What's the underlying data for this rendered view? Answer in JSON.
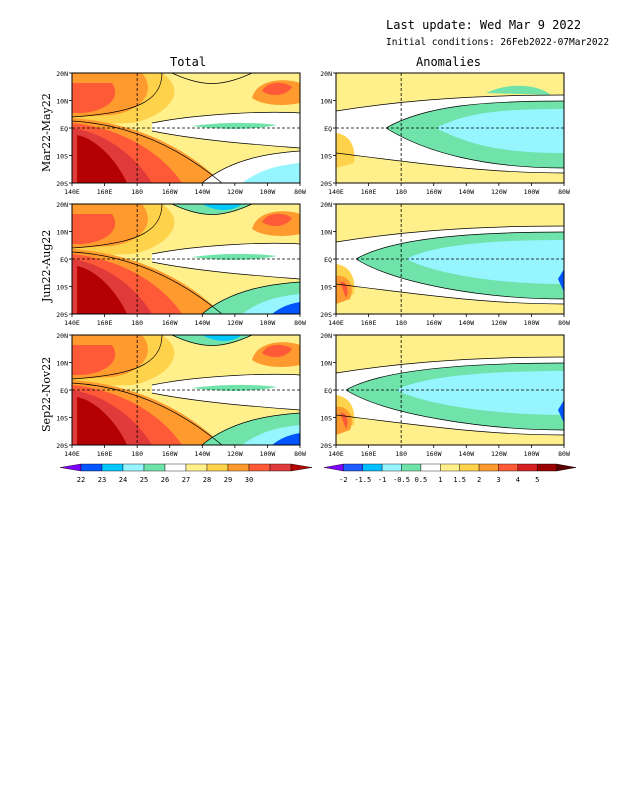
{
  "header": {
    "last_update": "Last update: Wed Mar 9 2022",
    "initial_conditions": "Initial conditions: 26Feb2022-07Mar2022"
  },
  "columns": {
    "total": "Total",
    "anomalies": "Anomalies"
  },
  "rows": [
    "Mar22-May22",
    "Jun22-Aug22",
    "Sep22-Nov22"
  ],
  "map": {
    "lat_labels": [
      "20N",
      "10N",
      "EQ",
      "10S",
      "20S"
    ],
    "lon_labels": [
      "140E",
      "160E",
      "180",
      "160W",
      "140W",
      "120W",
      "100W",
      "80W"
    ]
  },
  "total_colorbar": {
    "labels": [
      "22",
      "23",
      "24",
      "25",
      "26",
      "27",
      "28",
      "29",
      "30"
    ],
    "colors": [
      "#8000ff",
      "#0055ff",
      "#00c8ff",
      "#96f5ff",
      "#6fe3aa",
      "#ffffff",
      "#fff08c",
      "#ffd24b",
      "#ff9a2e",
      "#ff5a37",
      "#e03a3a",
      "#b40000"
    ]
  },
  "anom_colorbar": {
    "labels": [
      "-2",
      "-1.5",
      "-1",
      "-0.5",
      "0.5",
      "1",
      "1.5",
      "2",
      "3",
      "4",
      "5"
    ],
    "colors": [
      "#8000ff",
      "#1e5aff",
      "#00beff",
      "#96f5ff",
      "#6fe3aa",
      "#ffffff",
      "#fff08c",
      "#ffd24b",
      "#ff9a2e",
      "#ff5a37",
      "#d42020",
      "#9a0000",
      "#5a0000"
    ]
  }
}
